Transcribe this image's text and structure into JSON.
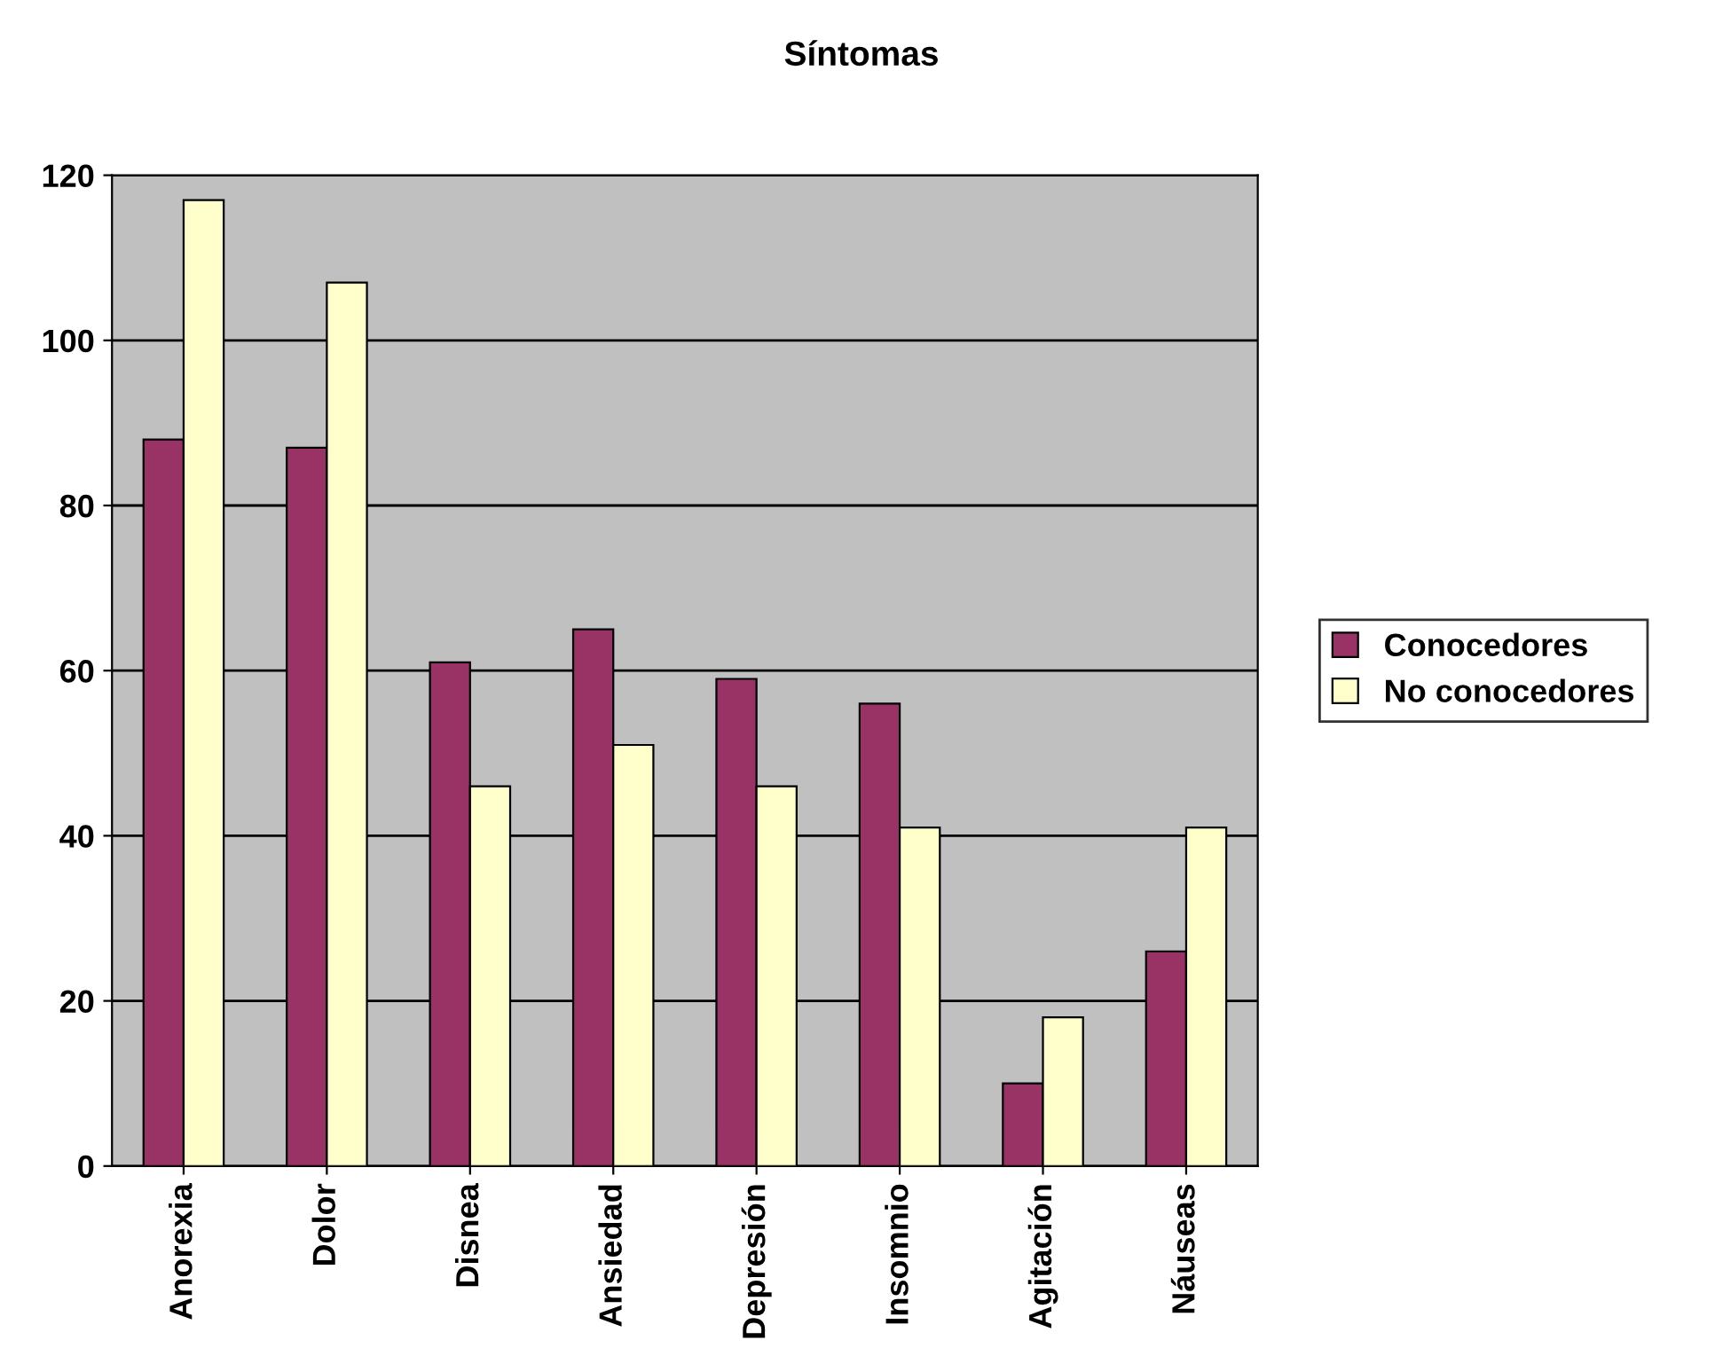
{
  "chart_data": {
    "type": "bar",
    "title": "Síntomas",
    "categories": [
      "Anorexia",
      "Dolor",
      "Disnea",
      "Ansiedad",
      "Depresión",
      "Insomnio",
      "Agitación",
      "Náuseas"
    ],
    "series": [
      {
        "name": "Conocedores",
        "color": "#993366",
        "values": [
          88,
          87,
          61,
          65,
          59,
          56,
          10,
          26
        ]
      },
      {
        "name": "No conocedores",
        "color": "#ffffcc",
        "values": [
          117,
          107,
          46,
          51,
          46,
          41,
          18,
          41
        ]
      }
    ],
    "ylim": [
      0,
      120
    ],
    "yticks": [
      0,
      20,
      40,
      60,
      80,
      100,
      120
    ],
    "grid": "y",
    "legend": "right"
  }
}
